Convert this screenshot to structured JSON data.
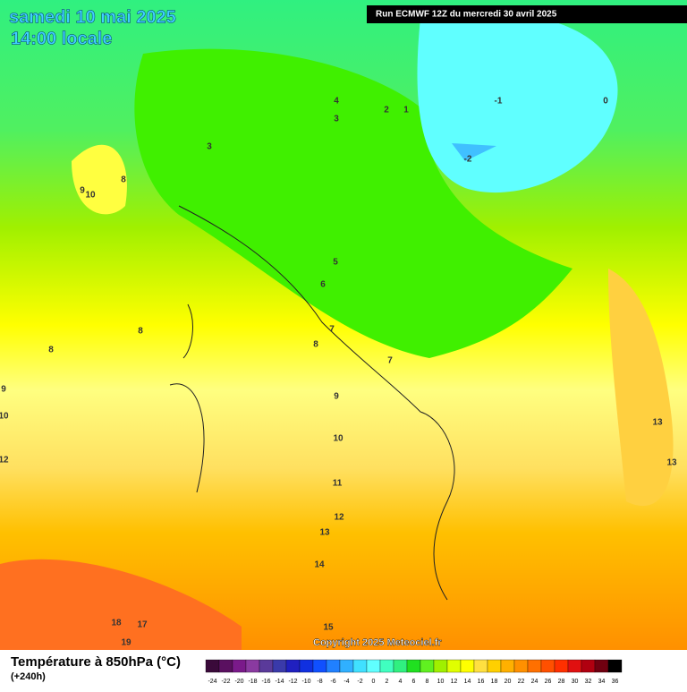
{
  "header": {
    "date": "samedi 10 mai 2025",
    "time": "14:00 locale",
    "run": "Run ECMWF 12Z du mercredi 30 avril 2025"
  },
  "map": {
    "contour_labels": [
      4,
      3,
      2,
      1,
      -1,
      0,
      -2,
      3,
      9,
      10,
      8,
      5,
      6,
      8,
      8,
      7,
      8,
      7,
      9,
      9,
      10,
      10,
      12,
      13,
      13,
      11,
      12,
      13,
      14,
      18,
      17,
      19,
      15
    ]
  },
  "footer": {
    "copyright": "Copyright 2025 Meteociel.fr",
    "title": "Température à 850hPa (°C)",
    "lead": "(+240h)"
  },
  "legend": {
    "labels": [
      -24,
      -22,
      -20,
      -18,
      -16,
      -14,
      -12,
      -10,
      -8,
      -6,
      -4,
      -2,
      0,
      2,
      4,
      6,
      8,
      10,
      12,
      14,
      16,
      18,
      20,
      22,
      24,
      26,
      28,
      30,
      32,
      34,
      36
    ],
    "colors": [
      "#3a0a3a",
      "#5a1060",
      "#7a1a8a",
      "#8a3aa0",
      "#5a3a9a",
      "#3a3aaa",
      "#2020c0",
      "#1030e0",
      "#1050ff",
      "#2080ff",
      "#30b0ff",
      "#40e0ff",
      "#60ffff",
      "#40ffc0",
      "#30f080",
      "#20e020",
      "#60f020",
      "#a0f000",
      "#e0ff00",
      "#ffff00",
      "#ffe040",
      "#ffd000",
      "#ffb000",
      "#ff9000",
      "#ff7000",
      "#ff5000",
      "#ff3000",
      "#e01010",
      "#b00010",
      "#700010",
      "#000000"
    ]
  }
}
